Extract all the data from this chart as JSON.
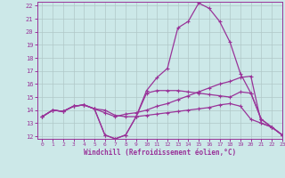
{
  "xlabel": "Windchill (Refroidissement éolien,°C)",
  "bg_color": "#cce8e8",
  "grid_color": "#b0c8c8",
  "line_color": "#993399",
  "xlim": [
    -0.5,
    23
  ],
  "ylim": [
    11.8,
    22.3
  ],
  "yticks": [
    12,
    13,
    14,
    15,
    16,
    17,
    18,
    19,
    20,
    21,
    22
  ],
  "xticks": [
    0,
    1,
    2,
    3,
    4,
    5,
    6,
    7,
    8,
    9,
    10,
    11,
    12,
    13,
    14,
    15,
    16,
    17,
    18,
    19,
    20,
    21,
    22,
    23
  ],
  "line1_x": [
    0,
    1,
    2,
    3,
    4,
    5,
    6,
    7,
    8,
    9,
    10,
    11,
    12,
    13,
    14,
    15,
    16,
    17,
    18,
    19,
    20,
    21,
    22,
    23
  ],
  "line1_y": [
    13.5,
    14.0,
    13.9,
    14.3,
    14.4,
    14.1,
    12.1,
    11.8,
    12.1,
    13.5,
    15.3,
    15.5,
    15.5,
    15.5,
    15.4,
    15.3,
    15.2,
    15.1,
    15.0,
    15.4,
    15.3,
    13.3,
    12.7,
    12.1
  ],
  "line2_x": [
    0,
    1,
    2,
    3,
    4,
    5,
    6,
    7,
    8,
    9,
    10,
    11,
    12,
    13,
    14,
    15,
    16,
    17,
    18,
    19,
    20,
    21,
    22,
    23
  ],
  "line2_y": [
    13.5,
    14.0,
    13.9,
    14.3,
    14.4,
    14.1,
    12.1,
    11.8,
    12.1,
    13.5,
    15.5,
    16.5,
    17.2,
    20.3,
    20.8,
    22.2,
    21.8,
    20.8,
    19.2,
    16.8,
    15.3,
    13.3,
    12.7,
    12.1
  ],
  "line3_x": [
    0,
    1,
    2,
    3,
    4,
    5,
    6,
    7,
    8,
    9,
    10,
    11,
    12,
    13,
    14,
    15,
    16,
    17,
    18,
    19,
    20,
    21,
    22,
    23
  ],
  "line3_y": [
    13.5,
    14.0,
    13.9,
    14.3,
    14.4,
    14.1,
    14.0,
    13.6,
    13.5,
    13.5,
    13.6,
    13.7,
    13.8,
    13.9,
    14.0,
    14.1,
    14.2,
    14.4,
    14.5,
    14.3,
    13.3,
    13.0,
    12.7,
    12.1
  ],
  "line4_x": [
    0,
    1,
    2,
    3,
    4,
    5,
    6,
    7,
    8,
    9,
    10,
    11,
    12,
    13,
    14,
    15,
    16,
    17,
    18,
    19,
    20,
    21,
    22,
    23
  ],
  "line4_y": [
    13.5,
    14.0,
    13.9,
    14.3,
    14.4,
    14.1,
    13.8,
    13.5,
    13.7,
    13.8,
    14.0,
    14.3,
    14.5,
    14.8,
    15.1,
    15.4,
    15.7,
    16.0,
    16.2,
    16.5,
    16.6,
    13.0,
    12.7,
    12.1
  ]
}
